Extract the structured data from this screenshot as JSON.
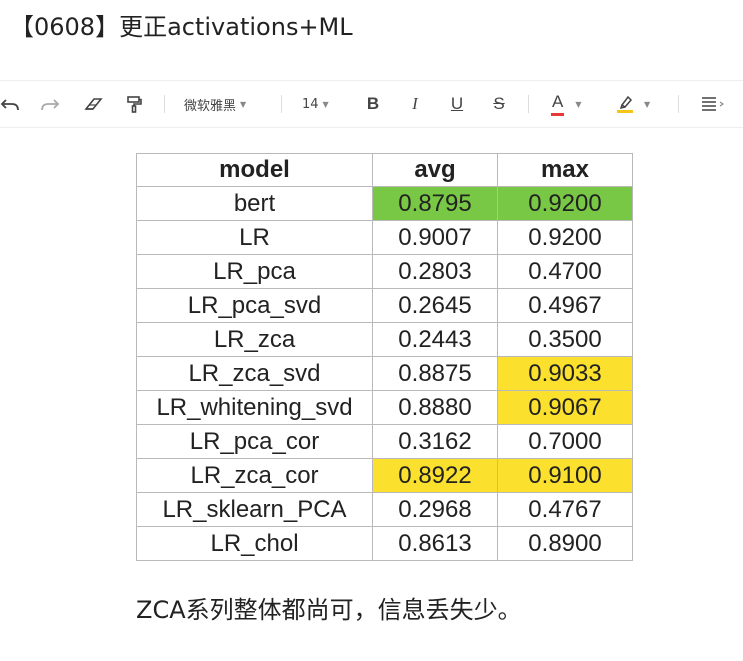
{
  "document": {
    "title": "【0608】更正activations+ML"
  },
  "toolbar": {
    "font_family": "微软雅黑",
    "font_size": "14",
    "bold": "B",
    "italic": "I",
    "underline": "U",
    "strikethrough": "S",
    "font_color_glyph": "A",
    "font_color": "#e53935",
    "highlight_color": "#f5c518",
    "icons": [
      "undo-icon",
      "redo-icon",
      "eraser-icon",
      "format-painter-icon",
      "highlighter-icon",
      "align-icon"
    ]
  },
  "table": {
    "headers": [
      "model",
      "avg",
      "max"
    ],
    "rows": [
      {
        "model": "bert",
        "avg": "0.8795",
        "max": "0.9200",
        "avg_hl": "green",
        "max_hl": "green"
      },
      {
        "model": "LR",
        "avg": "0.9007",
        "max": "0.9200",
        "avg_hl": "",
        "max_hl": ""
      },
      {
        "model": "LR_pca",
        "avg": "0.2803",
        "max": "0.4700",
        "avg_hl": "",
        "max_hl": ""
      },
      {
        "model": "LR_pca_svd",
        "avg": "0.2645",
        "max": "0.4967",
        "avg_hl": "",
        "max_hl": ""
      },
      {
        "model": "LR_zca",
        "avg": "0.2443",
        "max": "0.3500",
        "avg_hl": "",
        "max_hl": ""
      },
      {
        "model": "LR_zca_svd",
        "avg": "0.8875",
        "max": "0.9033",
        "avg_hl": "",
        "max_hl": "yellow"
      },
      {
        "model": "LR_whitening_svd",
        "avg": "0.8880",
        "max": "0.9067",
        "avg_hl": "",
        "max_hl": "yellow"
      },
      {
        "model": "LR_pca_cor",
        "avg": "0.3162",
        "max": "0.7000",
        "avg_hl": "",
        "max_hl": ""
      },
      {
        "model": "LR_zca_cor",
        "avg": "0.8922",
        "max": "0.9100",
        "avg_hl": "yellow",
        "max_hl": "yellow"
      },
      {
        "model": "LR_sklearn_PCA",
        "avg": "0.2968",
        "max": "0.4767",
        "avg_hl": "",
        "max_hl": ""
      },
      {
        "model": "LR_chol",
        "avg": "0.8613",
        "max": "0.8900",
        "avg_hl": "",
        "max_hl": ""
      }
    ],
    "colors": {
      "green": "#78c845",
      "yellow": "#fbe12e",
      "border": "#b9b9b9"
    }
  },
  "note": {
    "text": "ZCA系列整体都尚可，信息丢失少。"
  }
}
